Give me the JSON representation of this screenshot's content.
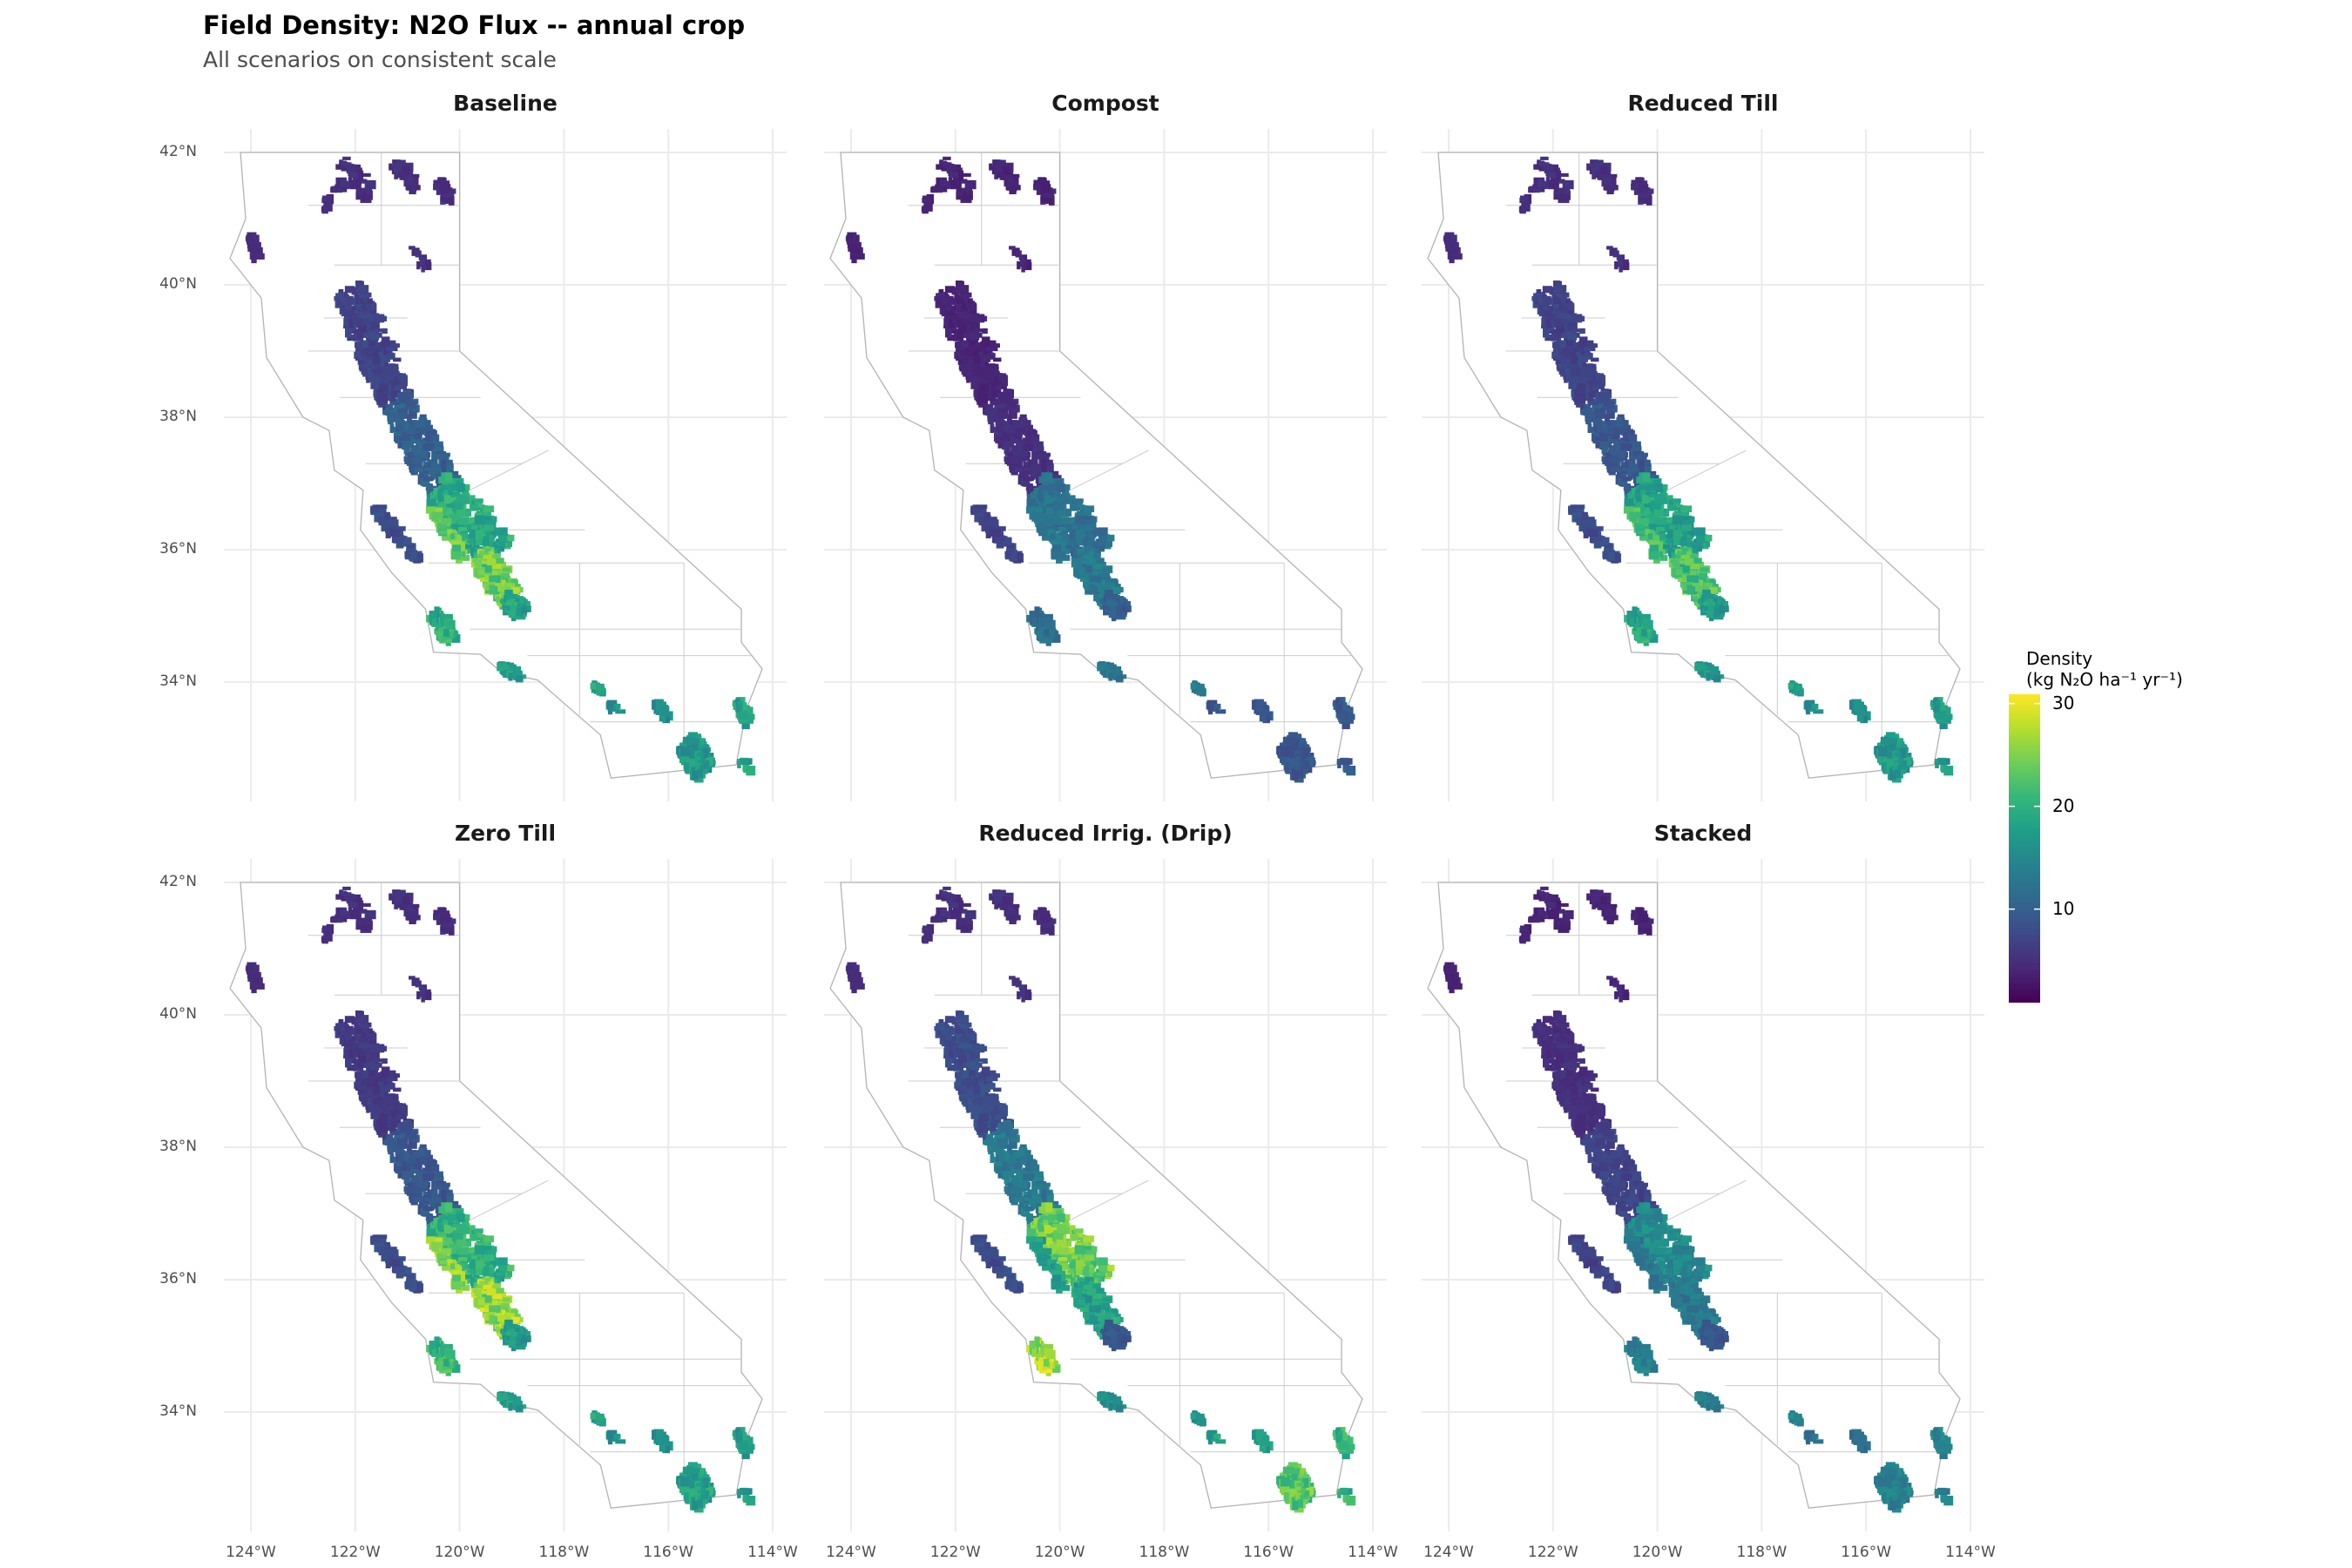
{
  "title": "Field Density: N2O Flux -- annual crop",
  "subtitle": "All scenarios on consistent scale",
  "chart_data": {
    "type": "heatmap",
    "title": "Field Density: N2O Flux -- annual crop",
    "subtitle": "All scenarios on consistent scale",
    "xlabel": "",
    "ylabel": "",
    "xlim": [
      -124.5,
      -113.7
    ],
    "ylim": [
      32.4,
      42.3
    ],
    "grid": true,
    "x_ticks": [
      {
        "value": -124,
        "label": "124°W"
      },
      {
        "value": -122,
        "label": "122°W"
      },
      {
        "value": -120,
        "label": "120°W"
      },
      {
        "value": -118,
        "label": "118°W"
      },
      {
        "value": -116,
        "label": "116°W"
      },
      {
        "value": -114,
        "label": "114°W"
      }
    ],
    "y_ticks": [
      {
        "value": 42,
        "label": "42°N"
      },
      {
        "value": 40,
        "label": "40°N"
      },
      {
        "value": 38,
        "label": "38°N"
      },
      {
        "value": 36,
        "label": "36°N"
      },
      {
        "value": 34,
        "label": "34°N"
      }
    ],
    "legend": {
      "title": "Density",
      "units": "(kg N₂O ha⁻¹ yr⁻¹)",
      "placement": "right",
      "colormap": "viridis",
      "range": [
        0.9,
        30.9
      ],
      "ticks": [
        {
          "value": 30,
          "label": "30"
        },
        {
          "value": 20,
          "label": "20"
        },
        {
          "value": 10,
          "label": "10"
        }
      ]
    },
    "panels": [
      {
        "name": "Baseline",
        "values": {
          "north": 5,
          "humboldt": 5,
          "sac": 7,
          "nsj": 10,
          "fresno": 19,
          "tulare": 24,
          "kern": 18,
          "salinas": 8,
          "santamaria": 20,
          "oxnard": 18,
          "coachella": 16,
          "imperial": 17,
          "paloverde": 18
        }
      },
      {
        "name": "Compost",
        "values": {
          "north": 4,
          "humboldt": 4,
          "sac": 4,
          "nsj": 5,
          "fresno": 12,
          "tulare": 13,
          "kern": 10,
          "salinas": 7,
          "santamaria": 12,
          "oxnard": 13,
          "coachella": 9,
          "imperial": 9,
          "paloverde": 9
        }
      },
      {
        "name": "Reduced Till",
        "values": {
          "north": 5,
          "humboldt": 5,
          "sac": 7,
          "nsj": 9,
          "fresno": 18,
          "tulare": 22,
          "kern": 17,
          "salinas": 8,
          "santamaria": 19,
          "oxnard": 17,
          "coachella": 16,
          "imperial": 17,
          "paloverde": 17
        }
      },
      {
        "name": "Zero Till",
        "values": {
          "north": 5,
          "humboldt": 5,
          "sac": 6,
          "nsj": 9,
          "fresno": 20,
          "tulare": 26,
          "kern": 17,
          "salinas": 8,
          "santamaria": 21,
          "oxnard": 18,
          "coachella": 16,
          "imperial": 18,
          "paloverde": 17
        }
      },
      {
        "name": "Reduced Irrig. (Drip)",
        "values": {
          "north": 5,
          "humboldt": 5,
          "sac": 8,
          "nsj": 13,
          "fresno": 24,
          "tulare": 18,
          "kern": 9,
          "salinas": 8,
          "santamaria": 27,
          "oxnard": 16,
          "coachella": 18,
          "imperial": 23,
          "paloverde": 20
        }
      },
      {
        "name": "Stacked",
        "values": {
          "north": 4,
          "humboldt": 4,
          "sac": 5,
          "nsj": 7,
          "fresno": 15,
          "tulare": 13,
          "kern": 9,
          "salinas": 7,
          "santamaria": 14,
          "oxnard": 14,
          "coachella": 12,
          "imperial": 14,
          "paloverde": 14
        }
      }
    ]
  }
}
